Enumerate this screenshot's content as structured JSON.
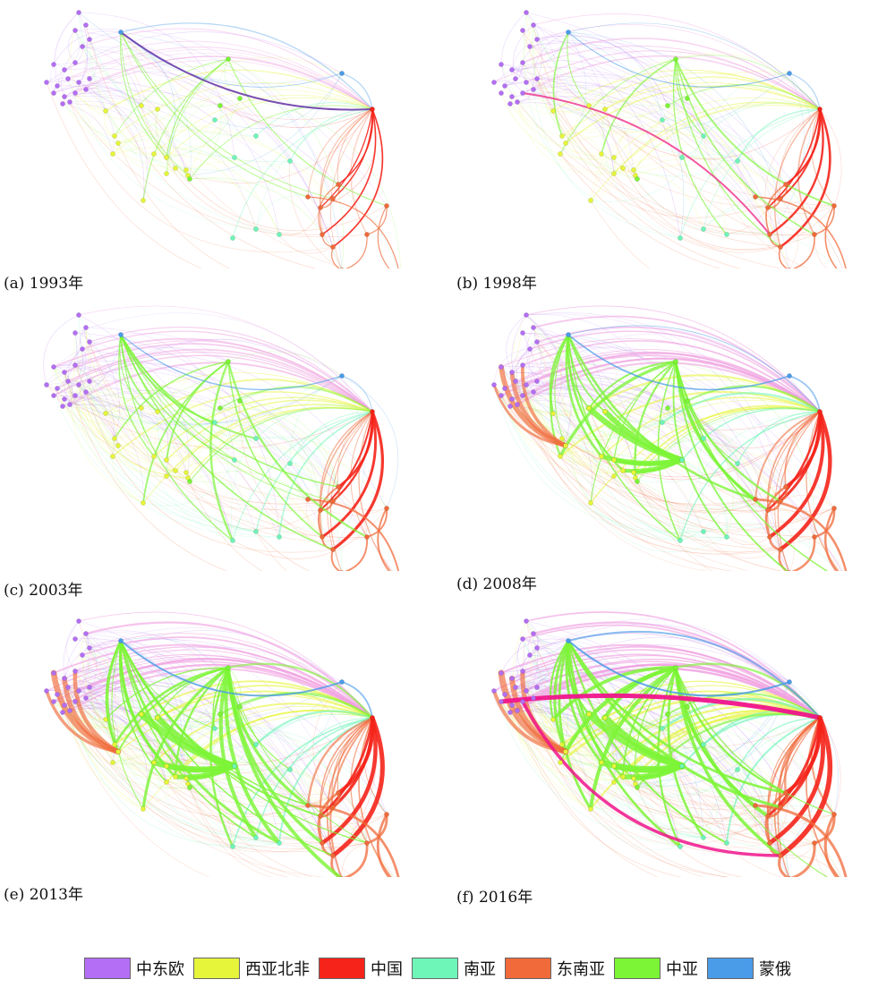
{
  "panels": [
    {
      "id": "a",
      "caption": "(a) 1993年",
      "level": 0.15
    },
    {
      "id": "b",
      "caption": "(b) 1998年",
      "level": 0.35
    },
    {
      "id": "c",
      "caption": "(c) 2003年",
      "level": 0.5
    },
    {
      "id": "d",
      "caption": "(d) 2008年",
      "level": 0.75
    },
    {
      "id": "e",
      "caption": "(e) 2013年",
      "level": 0.9
    },
    {
      "id": "f",
      "caption": "(f) 2016年",
      "level": 1.0
    }
  ],
  "legend": [
    {
      "key": "cee",
      "label": "中东欧",
      "color": "#b36ef5"
    },
    {
      "key": "wanf",
      "label": "西亚北非",
      "color": "#e6f53a"
    },
    {
      "key": "china",
      "label": "中国",
      "color": "#f5231a"
    },
    {
      "key": "sa",
      "label": "南亚",
      "color": "#6ef5b8"
    },
    {
      "key": "sea",
      "label": "东南亚",
      "color": "#f06a3a"
    },
    {
      "key": "ca",
      "label": "中亚",
      "color": "#7cf536"
    },
    {
      "key": "mr",
      "label": "蒙俄",
      "color": "#4a9be8"
    }
  ]
}
